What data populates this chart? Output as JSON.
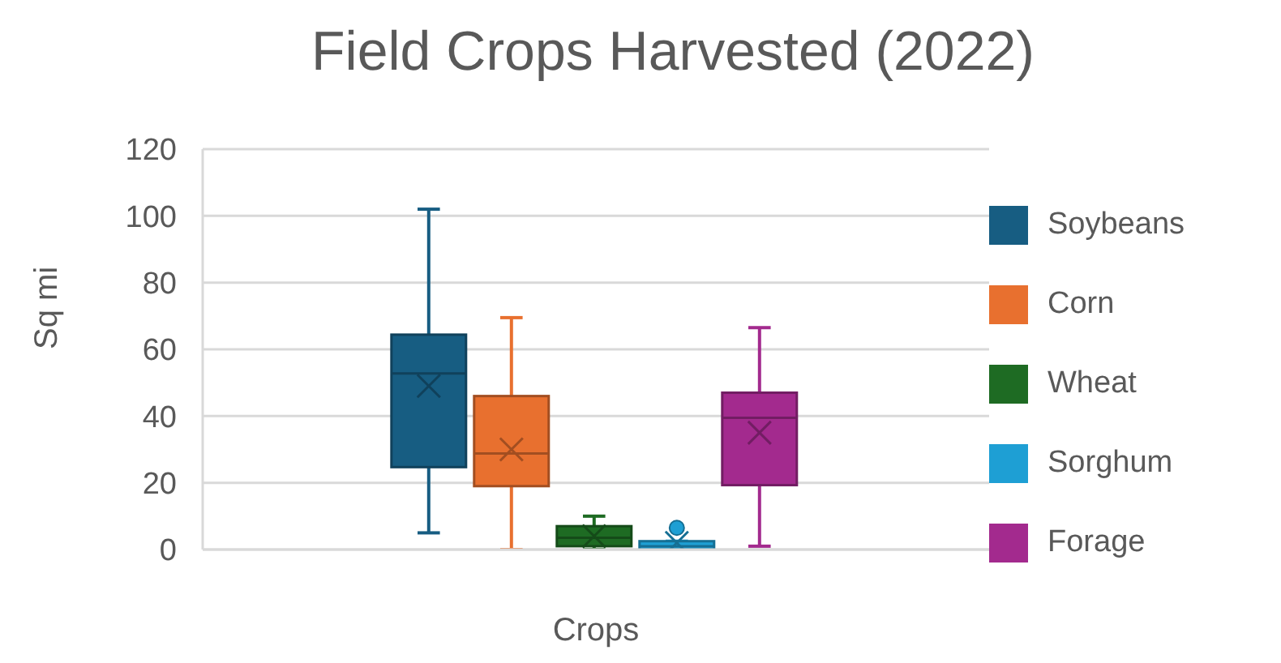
{
  "chart_data": {
    "type": "box",
    "title": "Field Crops Harvested (2022)",
    "xlabel": "Crops",
    "ylabel": "Sq mi",
    "categories": [
      null
    ],
    "series": [
      {
        "name": "Soybeans",
        "color": "#175d82",
        "boxes": [
          {
            "low": 5,
            "q1": 24.7,
            "median": 52.8,
            "q3": 64.4,
            "high": 102,
            "mean": 49
          }
        ]
      },
      {
        "name": "Corn",
        "color": "#e8702f",
        "boxes": [
          {
            "low": 0,
            "q1": 19,
            "median": 28.8,
            "q3": 46,
            "high": 69.5,
            "mean": 30
          }
        ]
      },
      {
        "name": "Wheat",
        "color": "#1e6b23",
        "boxes": [
          {
            "low": 0,
            "q1": 1,
            "median": 3.5,
            "q3": 7,
            "high": 10,
            "mean": 4
          }
        ]
      },
      {
        "name": "Sorghum",
        "color": "#1e9fd4",
        "boxes": [
          {
            "low": 0,
            "q1": 0,
            "median": 1,
            "q3": 2.5,
            "high": 2.5,
            "mean": 2,
            "outliers": [
              6.5
            ]
          }
        ]
      },
      {
        "name": "Forage",
        "color": "#a32a8e",
        "boxes": [
          {
            "low": 1,
            "q1": 19.3,
            "median": 39.5,
            "q3": 47,
            "high": 66.5,
            "mean": 35
          }
        ]
      }
    ],
    "ylim": [
      0,
      120
    ],
    "yticks": [
      0,
      20,
      40,
      60,
      80,
      100,
      120
    ],
    "grid": "y",
    "legend": "right"
  }
}
